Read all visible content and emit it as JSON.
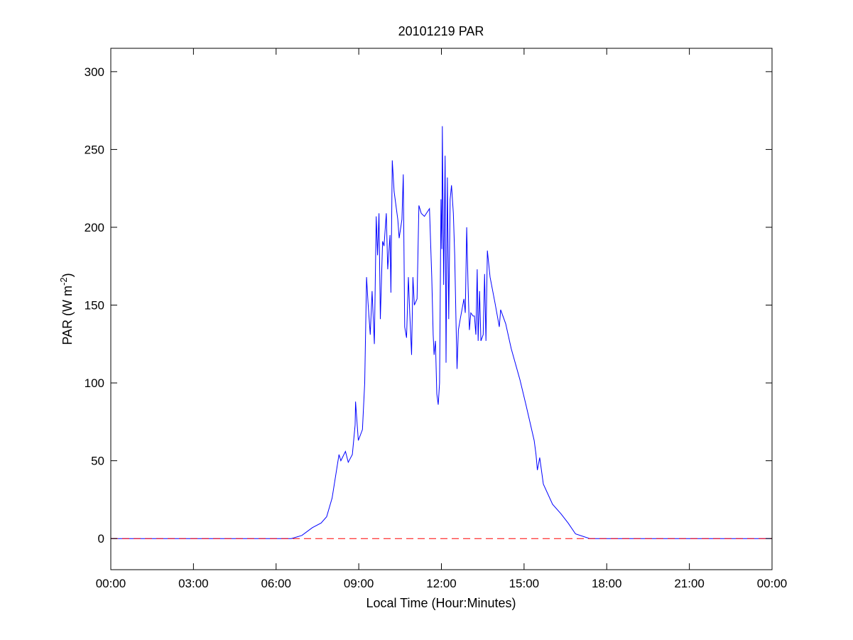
{
  "chart_data": {
    "type": "line",
    "title": "20101219 PAR",
    "xlabel": "Local Time (Hour:Minutes)",
    "ylabel": "PAR (W m",
    "ylabel_sup": "-2",
    "ylabel_close": ")",
    "xlim": [
      "00:00",
      "24:00"
    ],
    "ylim": [
      -20,
      315
    ],
    "xticks": [
      "00:00",
      "03:00",
      "06:00",
      "09:00",
      "12:00",
      "15:00",
      "18:00",
      "21:00",
      "00:00"
    ],
    "yticks": [
      0,
      50,
      100,
      150,
      200,
      250,
      300
    ],
    "grid": false,
    "series": [
      {
        "color": "#0000ff",
        "style": "solid",
        "x": [
          "00:00",
          "06:33",
          "06:56",
          "07:19",
          "07:38",
          "07:50",
          "08:02",
          "08:17",
          "08:21",
          "08:31",
          "08:37",
          "08:46",
          "08:52",
          "08:53",
          "08:59",
          "09:08",
          "09:13",
          "09:17",
          "09:20",
          "09:25",
          "09:29",
          "09:34",
          "09:38",
          "09:41",
          "09:44",
          "09:47",
          "09:52",
          "09:55",
          "10:00",
          "10:03",
          "10:08",
          "10:10",
          "10:13",
          "10:17",
          "10:25",
          "10:28",
          "10:34",
          "10:37",
          "10:40",
          "10:44",
          "10:48",
          "10:51",
          "10:55",
          "10:58",
          "11:01",
          "11:07",
          "11:11",
          "11:16",
          "11:23",
          "11:34",
          "11:39",
          "11:42",
          "11:44",
          "11:47",
          "11:50",
          "11:53",
          "11:56",
          "11:59",
          "12:01",
          "12:02",
          "12:05",
          "12:08",
          "12:10",
          "12:13",
          "12:16",
          "12:19",
          "12:22",
          "12:26",
          "12:29",
          "12:32",
          "12:34",
          "12:37",
          "12:41",
          "12:49",
          "12:52",
          "12:55",
          "12:58",
          "13:01",
          "13:04",
          "13:09",
          "13:12",
          "13:15",
          "13:18",
          "13:20",
          "13:23",
          "13:26",
          "13:31",
          "13:34",
          "13:37",
          "13:40",
          "13:46",
          "13:57",
          "14:06",
          "14:09",
          "14:20",
          "14:32",
          "14:51",
          "15:04",
          "15:22",
          "15:26",
          "15:29",
          "15:34",
          "15:42",
          "16:02",
          "16:20",
          "16:36",
          "16:52",
          "17:23",
          "24:00"
        ],
        "y": [
          0,
          0,
          2,
          7,
          10,
          14,
          26,
          54,
          50,
          56,
          49,
          54,
          73,
          88,
          63,
          70,
          100,
          168,
          152,
          131,
          159,
          125,
          207,
          182,
          209,
          141,
          191,
          188,
          209,
          173,
          195,
          158,
          243,
          223,
          205,
          193,
          205,
          234,
          136,
          129,
          168,
          145,
          118,
          168,
          150,
          154,
          214,
          209,
          207,
          212,
          168,
          131,
          118,
          127,
          93,
          86,
          100,
          218,
          186,
          265,
          163,
          246,
          113,
          232,
          141,
          218,
          227,
          209,
          182,
          136,
          109,
          134,
          141,
          154,
          145,
          200,
          163,
          134,
          145,
          143,
          143,
          131,
          173,
          127,
          159,
          127,
          131,
          170,
          127,
          185,
          168,
          151,
          136,
          147,
          138,
          122,
          102,
          86,
          63,
          54,
          44,
          52,
          35,
          22,
          16,
          10,
          3,
          0,
          0
        ]
      },
      {
        "color": "#ff0000",
        "style": "dashed",
        "x": [
          "00:00",
          "24:00"
        ],
        "y": [
          0,
          0
        ]
      }
    ]
  }
}
